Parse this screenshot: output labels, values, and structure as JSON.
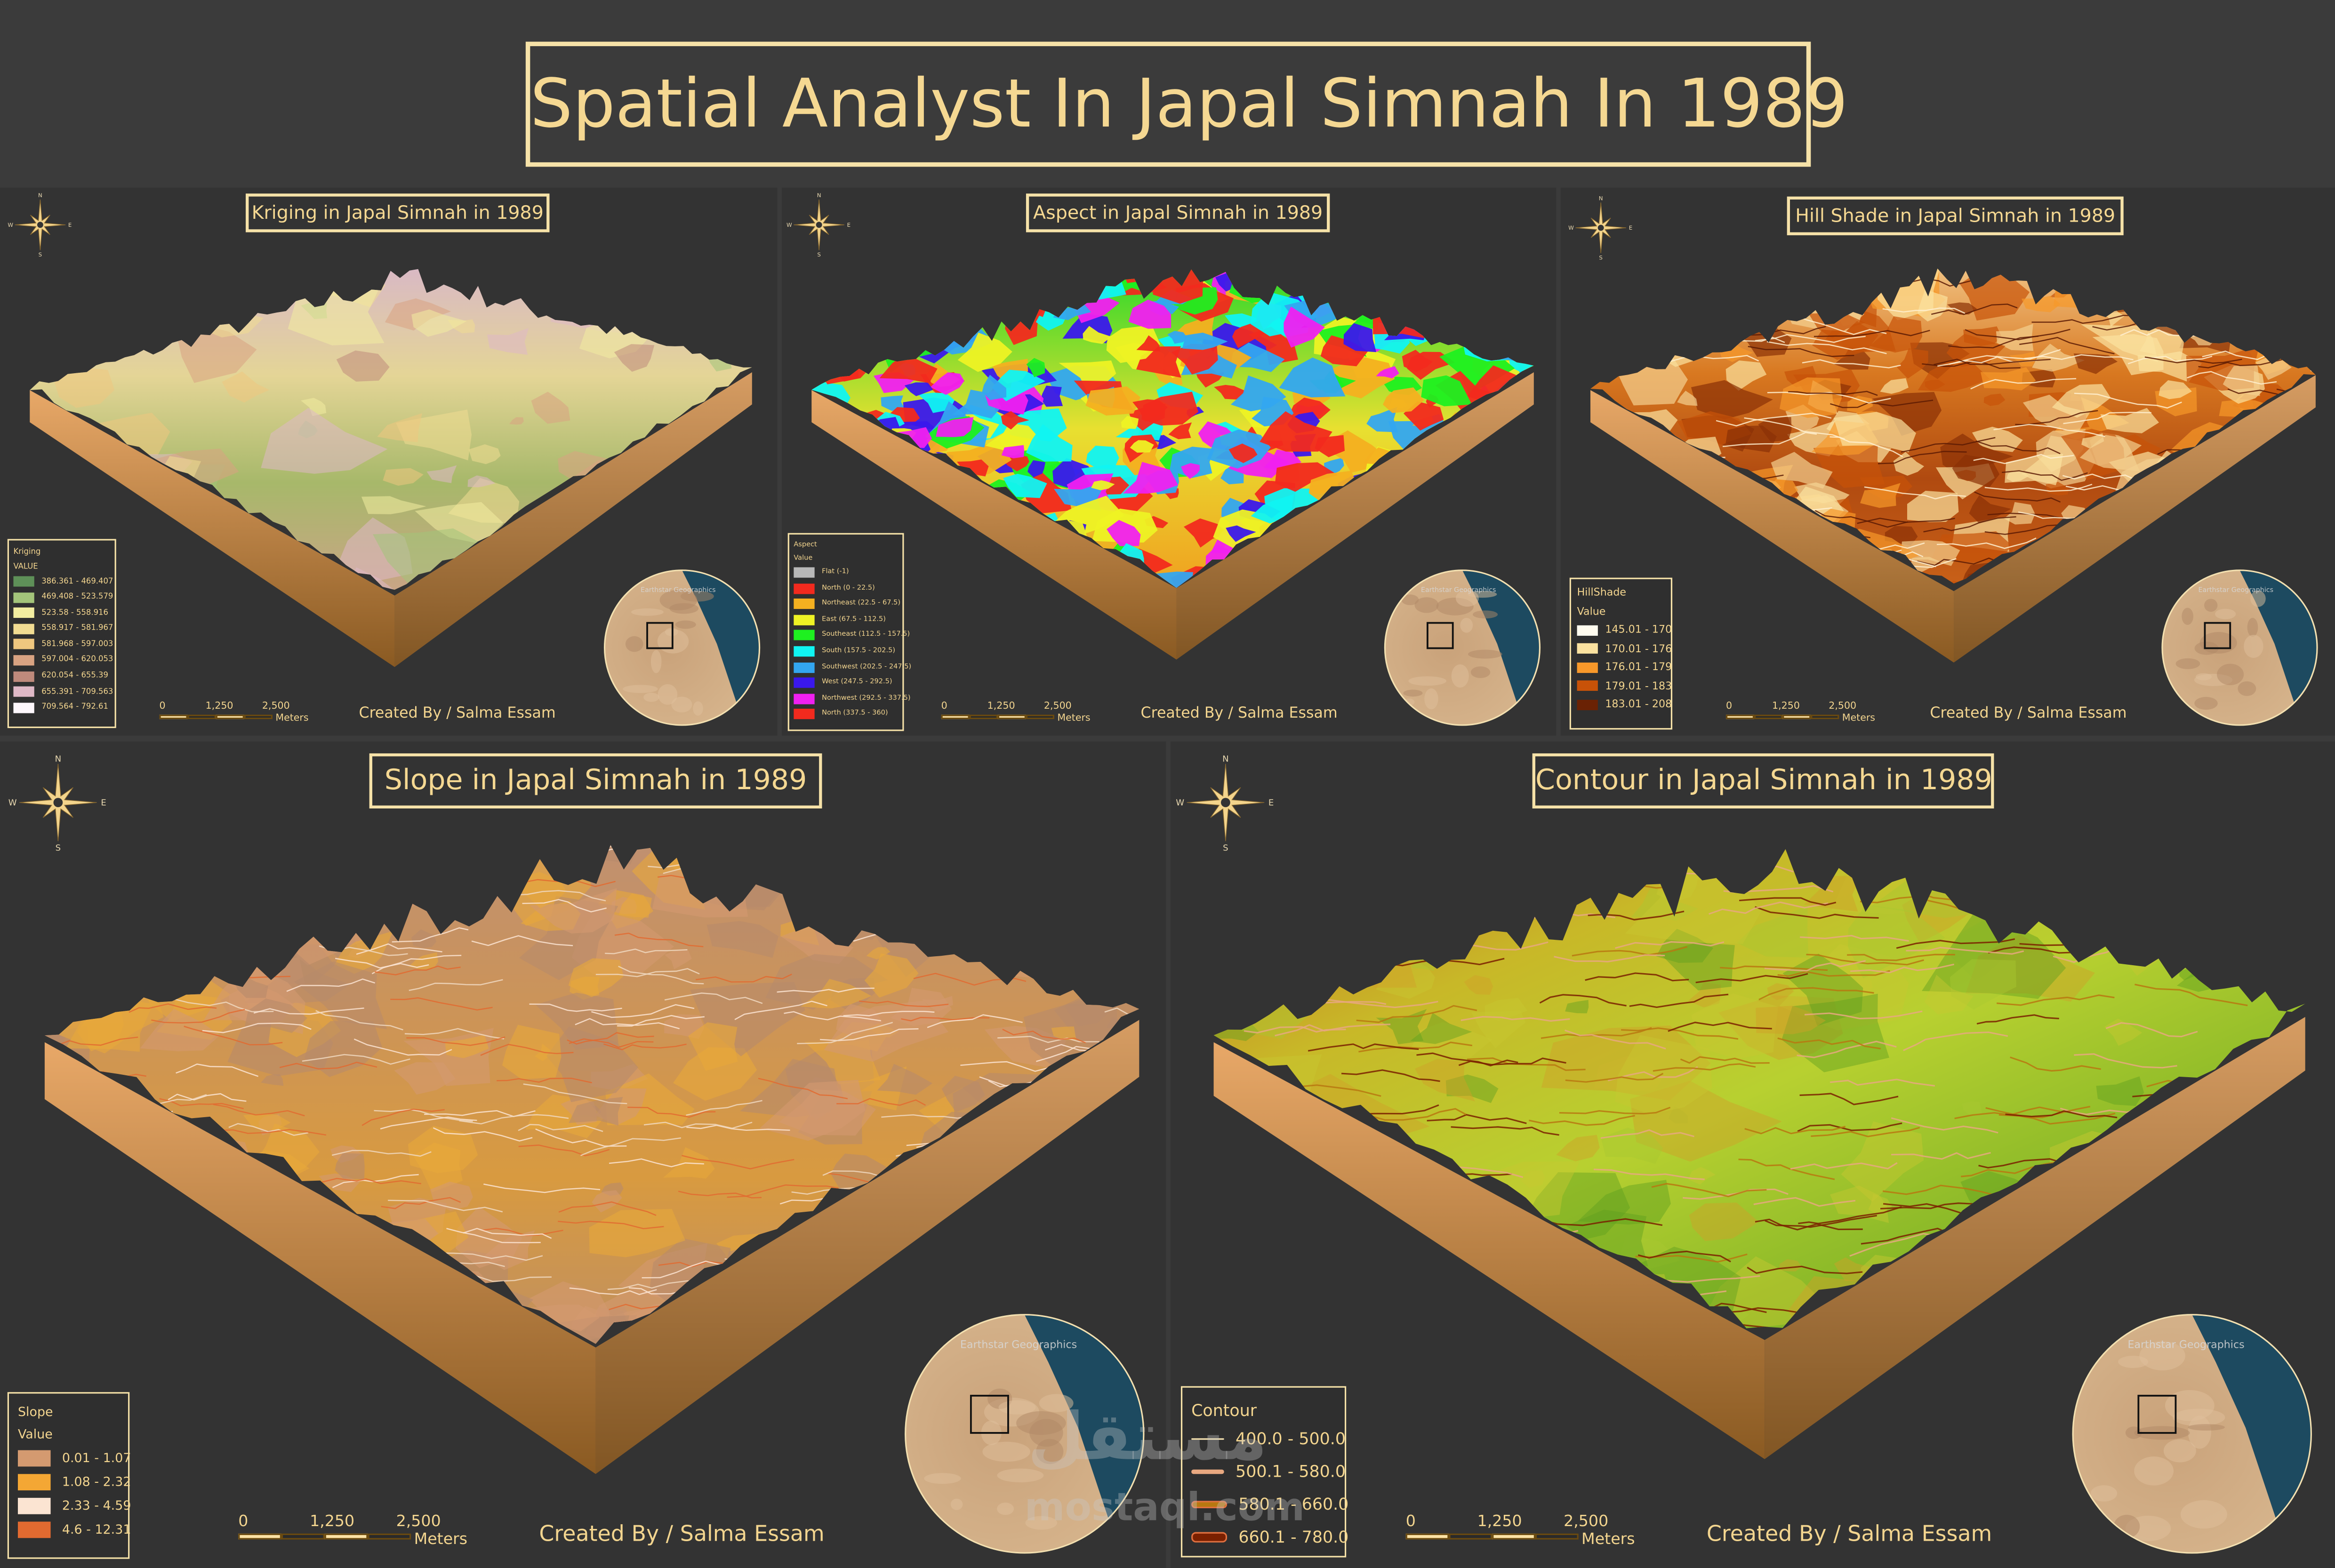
{
  "main_title": "Spatial Analyst In Japal Simnah In 1989",
  "credit": "Created By / Salma Essam",
  "inset_attribution": "Earthstar Geographics",
  "compass": {
    "n": "N",
    "e": "E",
    "s": "S",
    "w": "W"
  },
  "scale_bar": {
    "labels": [
      "0",
      "1,250",
      "2,500"
    ],
    "unit": "Meters"
  },
  "watermark": {
    "arabic": "مستقل",
    "latin": "mostaql.com"
  },
  "panels": {
    "kriging": {
      "title": "Kriging in Japal Simnah in 1989",
      "legend_title": "Kriging",
      "legend_subtitle": "VALUE",
      "items": [
        {
          "label": "386.361 - 469.407",
          "color": "#5e9058"
        },
        {
          "label": "469.408 - 523.579",
          "color": "#a3c47a"
        },
        {
          "label": "523.58 - 558.916",
          "color": "#f2eda0"
        },
        {
          "label": "558.917 - 581.967",
          "color": "#f1dc92"
        },
        {
          "label": "581.968 - 597.003",
          "color": "#efc77f"
        },
        {
          "label": "597.004 - 620.053",
          "color": "#d9a382"
        },
        {
          "label": "620.054 - 655.39",
          "color": "#bf8a7c"
        },
        {
          "label": "655.391 - 709.563",
          "color": "#dfb8c6"
        },
        {
          "label": "709.564 - 792.61",
          "color": "#fdf7fc"
        }
      ]
    },
    "aspect": {
      "title": "Aspect in Japal Simnah in 1989",
      "legend_title": "Aspect",
      "legend_subtitle": "Value",
      "items": [
        {
          "label": "Flat (-1)",
          "color": "#b8b8b8"
        },
        {
          "label": "North (0 - 22.5)",
          "color": "#f22a1e"
        },
        {
          "label": "Northeast (22.5 - 67.5)",
          "color": "#f4b020"
        },
        {
          "label": "East (67.5 - 112.5)",
          "color": "#eef224"
        },
        {
          "label": "Southeast (112.5 - 157.5)",
          "color": "#1ef020"
        },
        {
          "label": "South (157.5 - 202.5)",
          "color": "#10f4f2"
        },
        {
          "label": "Southwest (202.5 - 247.5)",
          "color": "#33a6f0"
        },
        {
          "label": "West (247.5 - 292.5)",
          "color": "#3a18ec"
        },
        {
          "label": "Northwest (292.5 - 337.5)",
          "color": "#f020f0"
        },
        {
          "label": "North (337.5 - 360)",
          "color": "#f22a1e"
        }
      ]
    },
    "hillshade": {
      "title": "Hill Shade in Japal Simnah in 1989",
      "legend_title": "HillShade",
      "legend_subtitle": "Value",
      "items": [
        {
          "label": "145.01 - 170",
          "color": "#fffcef"
        },
        {
          "label": "170.01 - 176",
          "color": "#fbe2a0"
        },
        {
          "label": "176.01 - 179",
          "color": "#f7982a"
        },
        {
          "label": "179.01 - 183",
          "color": "#c85208"
        },
        {
          "label": "183.01 - 208",
          "color": "#6a2204"
        }
      ]
    },
    "slope": {
      "title": "Slope in Japal Simnah in 1989",
      "legend_title": "Slope",
      "legend_subtitle": "Value",
      "items": [
        {
          "label": "0.01 - 1.07",
          "color": "#d49a70"
        },
        {
          "label": "1.08 - 2.32",
          "color": "#f4a734"
        },
        {
          "label": "2.33 - 4.59",
          "color": "#fbe4d2"
        },
        {
          "label": "4.6 - 12.31",
          "color": "#e26a30"
        }
      ]
    },
    "contour": {
      "title": "Contour in Japal Simnah in 1989",
      "legend_title": "Contour",
      "items": [
        {
          "label": "400.0 - 500.0",
          "color": "#fbe8b4"
        },
        {
          "label": "500.1 - 580.0",
          "color": "#e8a880"
        },
        {
          "label": "580.1 - 660.0",
          "color": "#b87810"
        },
        {
          "label": "660.1 - 780.0",
          "color": "#7a2000"
        }
      ]
    }
  }
}
